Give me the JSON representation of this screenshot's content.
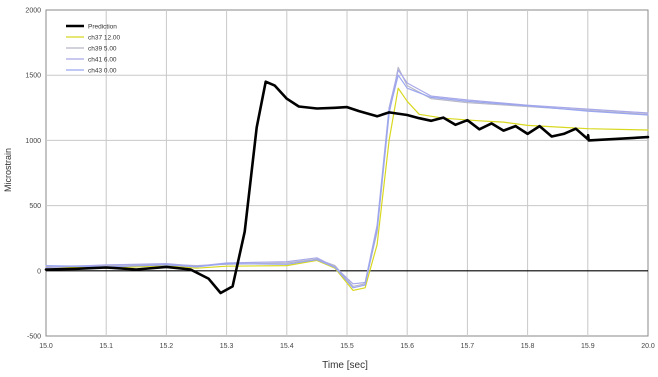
{
  "chart_data": {
    "type": "line",
    "title": "",
    "xlabel": "Time [sec]",
    "ylabel": "Microstrain",
    "xlim": [
      15.0,
      20.0
    ],
    "ylim": [
      -500,
      2000
    ],
    "x_ticks": [
      15.0,
      15.1,
      15.2,
      15.3,
      15.4,
      15.5,
      15.6,
      15.7,
      15.8,
      15.9,
      20.0
    ],
    "x_tick_labels": [
      "15.0",
      "15.1",
      "15.2",
      "15.3",
      "15.4",
      "15.5",
      "15.6",
      "15.7",
      "15.8",
      "15.9",
      "20.0"
    ],
    "y_ticks": [
      -500,
      0,
      500,
      1000,
      1500,
      2000
    ],
    "y_tick_labels": [
      "-500",
      "0",
      "500",
      "1000",
      "1500",
      "2000"
    ],
    "grid": true,
    "legend_position": "top-left",
    "series": [
      {
        "name": "Prediction",
        "color": "#000000",
        "width": 2.6,
        "points": [
          [
            15.0,
            10
          ],
          [
            15.05,
            15
          ],
          [
            15.1,
            25
          ],
          [
            15.15,
            10
          ],
          [
            15.2,
            30
          ],
          [
            15.24,
            10
          ],
          [
            15.27,
            -60
          ],
          [
            15.29,
            -170
          ],
          [
            15.31,
            -120
          ],
          [
            15.33,
            300
          ],
          [
            15.35,
            1100
          ],
          [
            15.365,
            1450
          ],
          [
            15.38,
            1420
          ],
          [
            15.4,
            1320
          ],
          [
            15.42,
            1260
          ],
          [
            15.45,
            1245
          ],
          [
            15.48,
            1250
          ],
          [
            15.5,
            1255
          ],
          [
            15.52,
            1225
          ],
          [
            15.55,
            1185
          ],
          [
            15.57,
            1215
          ],
          [
            15.6,
            1195
          ],
          [
            15.62,
            1170
          ],
          [
            15.64,
            1150
          ],
          [
            15.66,
            1175
          ],
          [
            15.68,
            1120
          ],
          [
            15.7,
            1155
          ],
          [
            15.72,
            1085
          ],
          [
            15.74,
            1130
          ],
          [
            15.76,
            1075
          ],
          [
            15.78,
            1110
          ],
          [
            15.8,
            1050
          ],
          [
            15.82,
            1110
          ],
          [
            15.84,
            1030
          ],
          [
            15.86,
            1050
          ],
          [
            15.88,
            1090
          ],
          [
            15.9,
            1010
          ],
          [
            15.92,
            1040
          ],
          [
            15.96,
            1000
          ],
          [
            20.0,
            1025
          ]
        ]
      },
      {
        "name": "ch37 12.00",
        "color": "#d8d820",
        "width": 1.2,
        "points": [
          [
            15.0,
            30
          ],
          [
            15.1,
            20
          ],
          [
            15.2,
            40
          ],
          [
            15.25,
            20
          ],
          [
            15.3,
            35
          ],
          [
            15.4,
            40
          ],
          [
            15.45,
            80
          ],
          [
            15.48,
            20
          ],
          [
            15.51,
            -150
          ],
          [
            15.53,
            -130
          ],
          [
            15.55,
            200
          ],
          [
            15.57,
            1000
          ],
          [
            15.585,
            1400
          ],
          [
            15.6,
            1300
          ],
          [
            15.62,
            1200
          ],
          [
            15.66,
            1170
          ],
          [
            15.72,
            1150
          ],
          [
            15.76,
            1140
          ],
          [
            15.8,
            1115
          ],
          [
            15.86,
            1100
          ],
          [
            15.92,
            1090
          ],
          [
            20.0,
            1080
          ]
        ]
      },
      {
        "name": "ch39 5.00",
        "color": "#b8b8c8",
        "width": 1.2,
        "points": [
          [
            15.0,
            35
          ],
          [
            15.1,
            40
          ],
          [
            15.2,
            50
          ],
          [
            15.25,
            40
          ],
          [
            15.3,
            50
          ],
          [
            15.4,
            60
          ],
          [
            15.45,
            90
          ],
          [
            15.48,
            40
          ],
          [
            15.51,
            -120
          ],
          [
            15.53,
            -100
          ],
          [
            15.55,
            300
          ],
          [
            15.57,
            1200
          ],
          [
            15.585,
            1560
          ],
          [
            15.6,
            1420
          ],
          [
            15.64,
            1320
          ],
          [
            15.7,
            1290
          ],
          [
            15.8,
            1260
          ],
          [
            15.9,
            1230
          ],
          [
            20.0,
            1200
          ]
        ]
      },
      {
        "name": "ch41 6.00",
        "color": "#a8a8e8",
        "width": 1.2,
        "points": [
          [
            15.0,
            25
          ],
          [
            15.1,
            45
          ],
          [
            15.2,
            55
          ],
          [
            15.25,
            35
          ],
          [
            15.3,
            60
          ],
          [
            15.4,
            70
          ],
          [
            15.45,
            100
          ],
          [
            15.48,
            30
          ],
          [
            15.51,
            -100
          ],
          [
            15.53,
            -90
          ],
          [
            15.55,
            350
          ],
          [
            15.57,
            1250
          ],
          [
            15.585,
            1540
          ],
          [
            15.6,
            1440
          ],
          [
            15.64,
            1340
          ],
          [
            15.7,
            1310
          ],
          [
            15.8,
            1270
          ],
          [
            15.9,
            1240
          ],
          [
            20.0,
            1210
          ]
        ]
      },
      {
        "name": "ch43 0.00",
        "color": "#9aa6f0",
        "width": 1.2,
        "points": [
          [
            15.0,
            40
          ],
          [
            15.1,
            30
          ],
          [
            15.2,
            45
          ],
          [
            15.25,
            30
          ],
          [
            15.3,
            55
          ],
          [
            15.4,
            50
          ],
          [
            15.45,
            85
          ],
          [
            15.48,
            25
          ],
          [
            15.51,
            -130
          ],
          [
            15.53,
            -110
          ],
          [
            15.55,
            320
          ],
          [
            15.57,
            1220
          ],
          [
            15.585,
            1500
          ],
          [
            15.6,
            1400
          ],
          [
            15.64,
            1330
          ],
          [
            15.7,
            1300
          ],
          [
            15.8,
            1265
          ],
          [
            15.9,
            1225
          ],
          [
            20.0,
            1195
          ]
        ]
      }
    ]
  }
}
